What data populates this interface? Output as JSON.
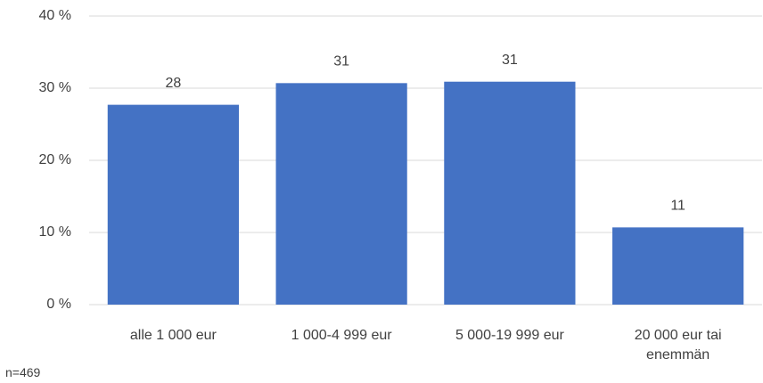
{
  "chart_data": {
    "type": "bar",
    "categories": [
      "alle 1 000 eur",
      "1 000-4 999 eur",
      "5 000-19 999 eur",
      "20 000 eur tai enemmän"
    ],
    "values": [
      27.7,
      30.7,
      30.9,
      10.7
    ],
    "value_labels": [
      "28",
      "31",
      "31",
      "11"
    ],
    "color": "#4472c4",
    "ylim": [
      0,
      40
    ],
    "yticks": [
      {
        "value": 0,
        "label": "0 %"
      },
      {
        "value": 10,
        "label": "10 %"
      },
      {
        "value": 20,
        "label": "20 %"
      },
      {
        "value": 30,
        "label": "30 %"
      },
      {
        "value": 40,
        "label": "40 %"
      }
    ],
    "grid": true,
    "note": "n=469"
  }
}
